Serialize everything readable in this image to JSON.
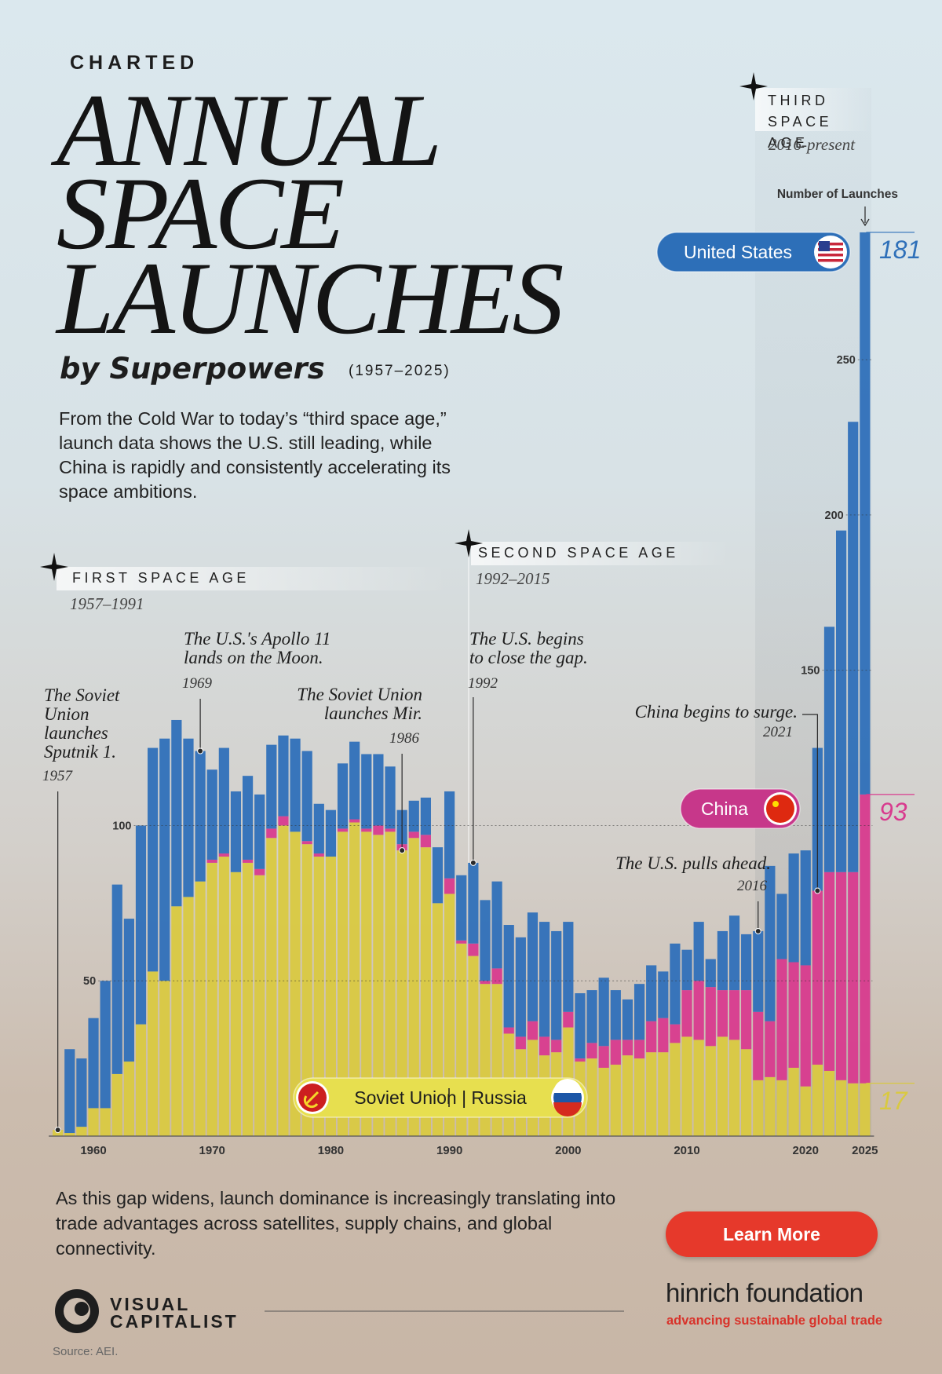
{
  "header": {
    "kicker": "CHARTED",
    "title_lines": [
      "ANNUAL",
      "SPACE",
      "LAUNCHES"
    ],
    "subtitle": "by Superpowers",
    "date_range": "(1957–2025)",
    "description": "From the Cold War to today’s “third space age,” launch data shows the U.S. still leading, while China is rapidly and consistently accelerating its space ambitions."
  },
  "chart_data": {
    "type": "bar",
    "stacked": true,
    "y_axis_label": "Number of Launches",
    "x": [
      1957,
      1958,
      1959,
      1960,
      1961,
      1962,
      1963,
      1964,
      1965,
      1966,
      1967,
      1968,
      1969,
      1970,
      1971,
      1972,
      1973,
      1974,
      1975,
      1976,
      1977,
      1978,
      1979,
      1980,
      1981,
      1982,
      1983,
      1984,
      1985,
      1986,
      1987,
      1988,
      1989,
      1990,
      1991,
      1992,
      1993,
      1994,
      1995,
      1996,
      1997,
      1998,
      1999,
      2000,
      2001,
      2002,
      2003,
      2004,
      2005,
      2006,
      2007,
      2008,
      2009,
      2010,
      2011,
      2012,
      2013,
      2014,
      2015,
      2016,
      2017,
      2018,
      2019,
      2020,
      2021,
      2022,
      2023,
      2024,
      2025
    ],
    "xlim": [
      1956.5,
      2025.5
    ],
    "xticks": [
      1960,
      1970,
      1980,
      1990,
      2000,
      2010,
      2020,
      2025
    ],
    "ylim": [
      0,
      292
    ],
    "yticks": [
      50,
      100,
      150,
      200,
      250
    ],
    "grid": true,
    "series": [
      {
        "name": "Soviet Union | Russia",
        "color": "#d9c941",
        "values": [
          2,
          1,
          3,
          9,
          9,
          20,
          24,
          36,
          53,
          50,
          74,
          77,
          82,
          88,
          90,
          85,
          88,
          84,
          96,
          100,
          98,
          94,
          90,
          90,
          98,
          101,
          98,
          97,
          98,
          92,
          96,
          93,
          75,
          78,
          62,
          58,
          49,
          49,
          33,
          28,
          31,
          26,
          27,
          35,
          24,
          25,
          22,
          23,
          26,
          25,
          27,
          27,
          30,
          32,
          31,
          29,
          32,
          31,
          28,
          18,
          19,
          18,
          22,
          16,
          23,
          21,
          18,
          17,
          17
        ]
      },
      {
        "name": "China",
        "color": "#d83b8e",
        "values": [
          0,
          0,
          0,
          0,
          0,
          0,
          0,
          0,
          0,
          0,
          0,
          0,
          0,
          1,
          1,
          0,
          1,
          2,
          3,
          3,
          0,
          1,
          1,
          0,
          1,
          1,
          1,
          3,
          1,
          2,
          2,
          4,
          0,
          5,
          1,
          4,
          1,
          5,
          2,
          4,
          6,
          6,
          4,
          5,
          1,
          5,
          7,
          8,
          5,
          6,
          10,
          11,
          6,
          15,
          19,
          19,
          15,
          16,
          19,
          22,
          18,
          39,
          34,
          39,
          56,
          64,
          67,
          68,
          93
        ]
      },
      {
        "name": "United States",
        "color": "#2f70b9",
        "values": [
          0,
          27,
          22,
          29,
          41,
          61,
          46,
          64,
          72,
          78,
          60,
          51,
          42,
          29,
          34,
          26,
          27,
          24,
          27,
          26,
          30,
          29,
          16,
          15,
          21,
          25,
          24,
          23,
          20,
          11,
          10,
          12,
          18,
          28,
          21,
          26,
          26,
          28,
          33,
          32,
          35,
          37,
          35,
          29,
          21,
          17,
          22,
          16,
          13,
          18,
          18,
          15,
          26,
          13,
          19,
          9,
          19,
          24,
          18,
          26,
          50,
          21,
          35,
          37,
          46,
          79,
          110,
          145,
          181
        ]
      }
    ],
    "eras": [
      {
        "name": "FIRST SPACE AGE",
        "period": "1957–1991"
      },
      {
        "name": "SECOND SPACE AGE",
        "period": "1992–2015"
      },
      {
        "name": "THIRD SPACE AGE",
        "period": "2016-present"
      }
    ],
    "annotations": [
      {
        "text": "The Soviet Union launches Sputnik 1.",
        "year": 1957
      },
      {
        "text": "The U.S.'s Apollo 11 lands on the Moon.",
        "year": 1969
      },
      {
        "text": "The Soviet Union launches Mir.",
        "year": 1986
      },
      {
        "text": "The U.S. begins to close the gap.",
        "year": 1992
      },
      {
        "text": "The U.S. pulls ahead.",
        "year": 2016
      },
      {
        "text": "China begins to surge.",
        "year": 2021
      }
    ]
  },
  "footer": {
    "text": "As this gap widens, launch dominance is increasingly translating into trade advantages across satellites, supply chains, and global connectivity.",
    "button": "Learn More",
    "brand_lines": [
      "VISUAL",
      "CAPITALIST"
    ],
    "partner": "hinrich foundation",
    "partner_tagline": "advancing sustainable global trade",
    "source": "Source: AEI."
  }
}
